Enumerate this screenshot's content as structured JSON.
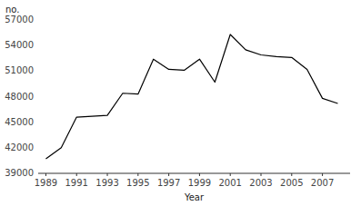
{
  "chart_data": {
    "type": "line",
    "xlabel": "Year",
    "ylabel": "no.",
    "x": [
      1989,
      1990,
      1991,
      1992,
      1993,
      1994,
      1995,
      1996,
      1997,
      1998,
      1999,
      2000,
      2001,
      2002,
      2003,
      2004,
      2005,
      2006,
      2007,
      2008
    ],
    "values": [
      40700,
      42000,
      45600,
      45700,
      45800,
      48400,
      48300,
      52400,
      51200,
      51100,
      52400,
      49700,
      55300,
      53500,
      52900,
      52700,
      52600,
      51200,
      47800,
      47200
    ],
    "color": "#000000",
    "xlim": [
      1988.5,
      2008.8
    ],
    "ylim": [
      39000,
      57000
    ],
    "xticks": [
      1989,
      1991,
      1993,
      1995,
      1997,
      1999,
      2001,
      2003,
      2005,
      2007
    ],
    "yticks": [
      39000,
      42000,
      45000,
      48000,
      51000,
      54000,
      57000
    ],
    "grid": false
  }
}
